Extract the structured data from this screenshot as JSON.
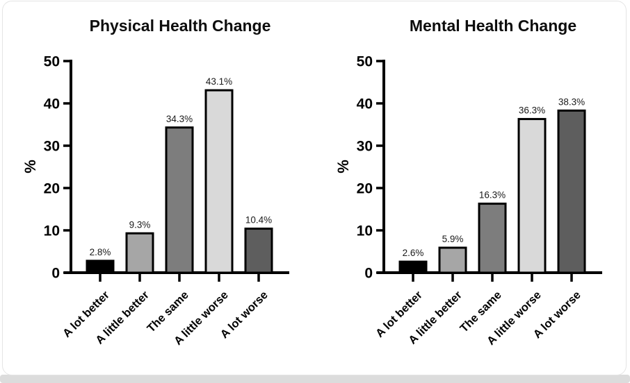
{
  "page": {
    "background_strip_color": "#dcdcdc",
    "card_border_color": "#e4e4e4",
    "card_background": "#ffffff"
  },
  "chart_data": [
    {
      "type": "bar",
      "title": "Physical Health Change",
      "xlabel": "",
      "ylabel": "%",
      "categories": [
        "A lot better",
        "A little better",
        "The same",
        "A little worse",
        "A lot worse"
      ],
      "values": [
        2.8,
        9.3,
        34.3,
        43.1,
        10.4
      ],
      "data_labels": [
        "2.8%",
        "9.3%",
        "34.3%",
        "43.1%",
        "10.4%"
      ],
      "ylim": [
        0,
        50
      ],
      "yticks": [
        0,
        10,
        20,
        30,
        40,
        50
      ],
      "bar_colors": [
        "#000000",
        "#a6a6a6",
        "#7d7d7d",
        "#d9d9d9",
        "#5e5e5e"
      ],
      "bar_outline_color": "#000000",
      "axis_color": "#000000",
      "value_label_color": "#1a1a1a",
      "grid": false,
      "legend": "none"
    },
    {
      "type": "bar",
      "title": "Mental Health Change",
      "xlabel": "",
      "ylabel": "%",
      "categories": [
        "A lot better",
        "A little better",
        "The same",
        "A little worse",
        "A lot worse"
      ],
      "values": [
        2.6,
        5.9,
        16.3,
        36.3,
        38.3
      ],
      "data_labels": [
        "2.6%",
        "5.9%",
        "16.3%",
        "36.3%",
        "38.3%"
      ],
      "ylim": [
        0,
        50
      ],
      "yticks": [
        0,
        10,
        20,
        30,
        40,
        50
      ],
      "bar_colors": [
        "#000000",
        "#a6a6a6",
        "#7d7d7d",
        "#d9d9d9",
        "#5e5e5e"
      ],
      "bar_outline_color": "#000000",
      "axis_color": "#000000",
      "value_label_color": "#1a1a1a",
      "grid": false,
      "legend": "none"
    }
  ]
}
